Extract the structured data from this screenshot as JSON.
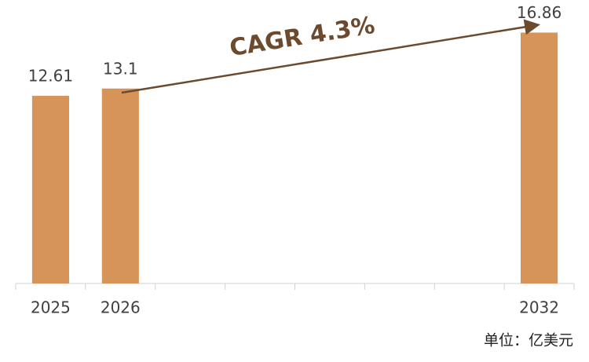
{
  "chart_data": {
    "type": "bar",
    "categories": [
      "2025",
      "2026",
      null,
      null,
      null,
      null,
      null,
      "2032"
    ],
    "values": [
      12.61,
      13.1,
      null,
      null,
      null,
      null,
      null,
      16.86
    ],
    "color": "#d79459",
    "ylim": [
      0,
      19
    ],
    "annotation": "CAGR  4.3%",
    "unit": "单位：亿美元"
  }
}
